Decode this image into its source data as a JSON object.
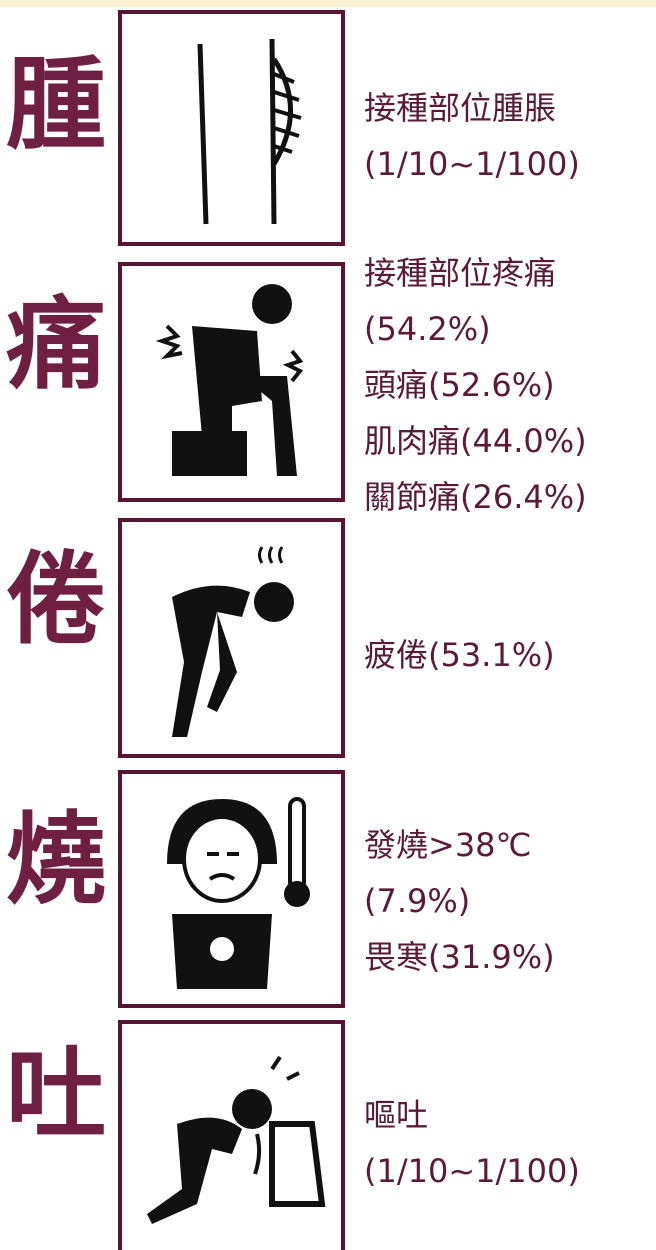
{
  "rows": [
    {
      "char": "腫",
      "lines": [
        "接種部位腫脹",
        "(1/10~1/100)"
      ]
    },
    {
      "char": "痛",
      "lines": [
        "接種部位疼痛",
        "(54.2%)",
        "頭痛(52.6%)",
        "肌肉痛(44.0%)",
        "關節痛(26.4%)"
      ]
    },
    {
      "char": "倦",
      "lines": [
        "疲倦(53.1%)"
      ]
    },
    {
      "char": "燒",
      "lines": [
        "發燒>38℃",
        "(7.9%)",
        "畏寒(31.9%)"
      ]
    },
    {
      "char": "吐",
      "lines": [
        "嘔吐",
        "(1/10~1/100)"
      ]
    }
  ]
}
